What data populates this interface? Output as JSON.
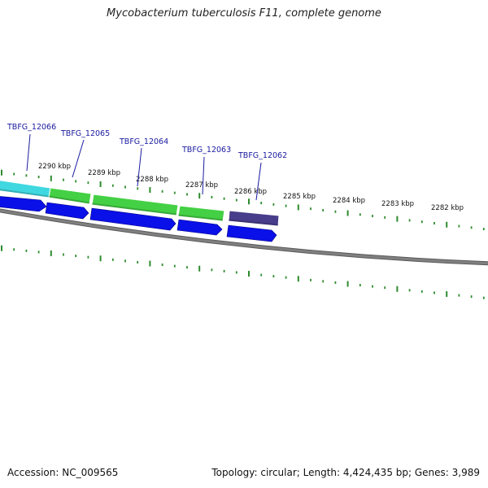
{
  "title": "Mycobacterium tuberculosis F11, complete genome",
  "accession": "Accession: NC_009565",
  "summary": "Topology: circular; Length: 4,424,435 bp; Genes: 3,989",
  "colors": {
    "backbone": "#808080",
    "tick": "#2e8b2e",
    "arrow": "#0a10e8",
    "label": "#1a1aa0",
    "segments": [
      "#40d8e0",
      "#44d044",
      "#44d044",
      "#44d044",
      "#483d8b"
    ]
  },
  "genes": [
    {
      "label": "TBFG_12066"
    },
    {
      "label": "TBFG_12065"
    },
    {
      "label": "TBFG_12064"
    },
    {
      "label": "TBFG_12063"
    },
    {
      "label": "TBFG_12062"
    }
  ],
  "scale": [
    {
      "label": "2290 kbp"
    },
    {
      "label": "2289 kbp"
    },
    {
      "label": "2288 kbp"
    },
    {
      "label": "2287 kbp"
    },
    {
      "label": "2286 kbp"
    },
    {
      "label": "2285 kbp"
    },
    {
      "label": "2284 kbp"
    },
    {
      "label": "2283 kbp"
    },
    {
      "label": "2282 kbp"
    }
  ]
}
